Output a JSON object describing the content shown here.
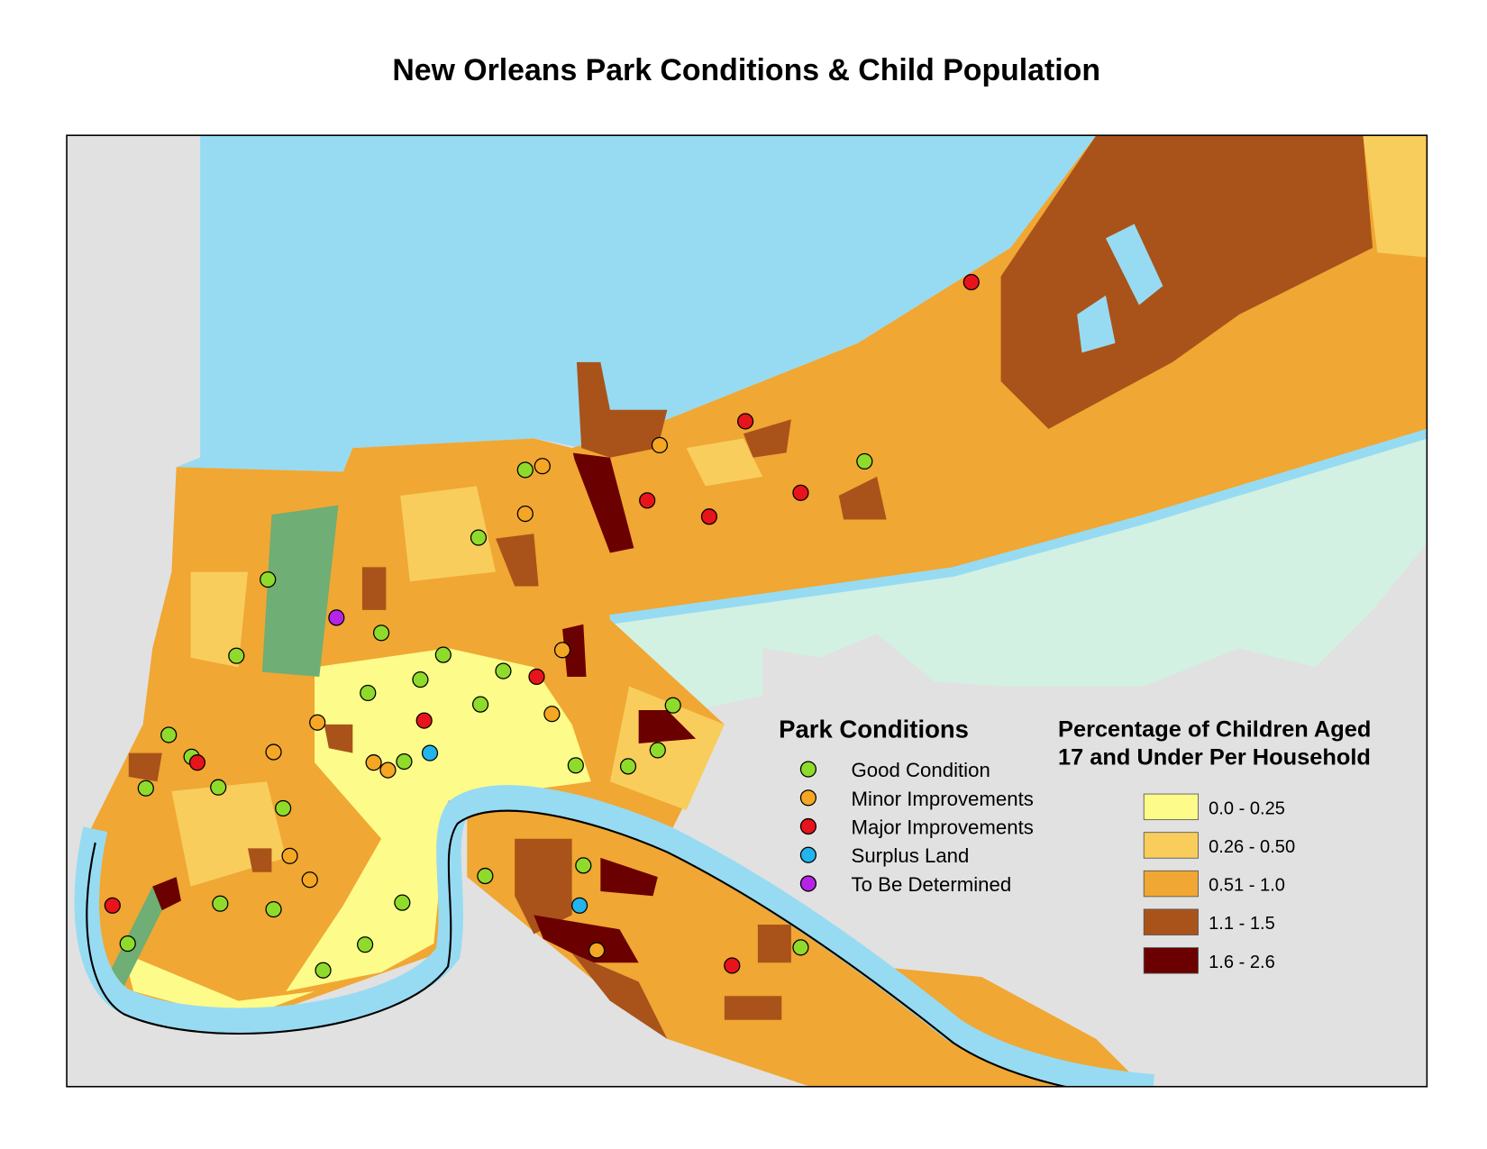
{
  "title": "New Orleans Park Conditions & Child Population",
  "park_legend": {
    "title": "Park Conditions",
    "items": [
      {
        "label": "Good Condition",
        "color": "#8fdb2c"
      },
      {
        "label": "Minor Improvements",
        "color": "#f5a623"
      },
      {
        "label": "Major Improvements",
        "color": "#e8141b"
      },
      {
        "label": "Surplus Land",
        "color": "#22b4ea"
      },
      {
        "label": "To Be Determined",
        "color": "#b624e8"
      }
    ]
  },
  "choropleth_legend": {
    "title_lines": [
      "Percentage of Children Aged",
      "17 and Under Per Household"
    ],
    "classes": [
      {
        "label": "0.0 - 0.25",
        "color": "#fdfb8a"
      },
      {
        "label": "0.26 - 0.50",
        "color": "#f9cd5c"
      },
      {
        "label": "0.51 - 1.0",
        "color": "#f0a733"
      },
      {
        "label": "1.1 - 1.5",
        "color": "#a9531a"
      },
      {
        "label": "1.6 - 2.6",
        "color": "#6b0000"
      }
    ]
  }
}
